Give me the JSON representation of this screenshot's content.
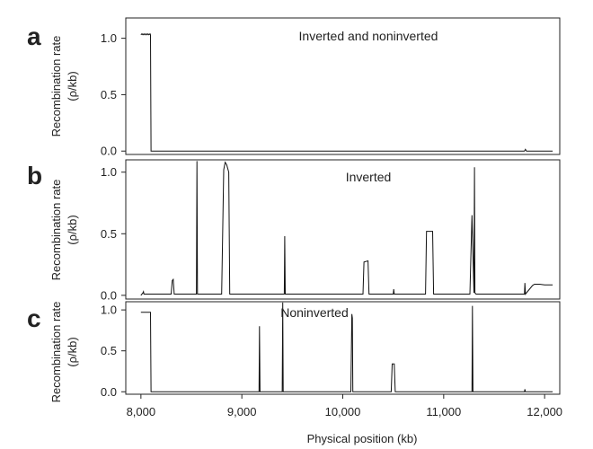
{
  "chart_data": [
    {
      "type": "line",
      "panel": "a",
      "title": "Inverted and noninverted",
      "ylabel_line1": "Recombination rate",
      "ylabel_line2": "(ρ/kb)",
      "xlim": [
        7850,
        12150
      ],
      "ylim": [
        -0.03,
        1.18
      ],
      "yticks": [
        0.0,
        0.5,
        1.0
      ],
      "ytick_labels": [
        "0.0",
        "0.5",
        "1.0"
      ],
      "x": [
        8000,
        8010,
        8020,
        8030,
        8040,
        8050,
        8060,
        8070,
        8080,
        8090,
        8095,
        8100,
        8110,
        9000,
        10000,
        11000,
        11800,
        11810,
        11820,
        12000,
        12080
      ],
      "y": [
        1.03,
        1.04,
        1.03,
        1.04,
        1.03,
        1.04,
        1.03,
        1.04,
        1.03,
        1.04,
        1.03,
        0.0,
        0.0,
        0.0,
        0.0,
        0.0,
        0.0,
        0.015,
        0.0,
        0.0,
        0.0
      ]
    },
    {
      "type": "line",
      "panel": "b",
      "title": "Inverted",
      "ylabel_line1": "Recombination rate",
      "ylabel_line2": "(ρ/kb)",
      "xlim": [
        7850,
        12150
      ],
      "ylim": [
        -0.03,
        1.1
      ],
      "yticks": [
        0.0,
        0.5,
        1.0
      ],
      "ytick_labels": [
        "0.0",
        "0.5",
        "1.0"
      ],
      "x": [
        8000,
        8020,
        8025,
        8030,
        8300,
        8310,
        8320,
        8330,
        8340,
        8550,
        8555,
        8560,
        8800,
        8820,
        8835,
        8850,
        8870,
        8880,
        9420,
        9425,
        9430,
        10200,
        10210,
        10250,
        10260,
        10500,
        10505,
        10510,
        10820,
        10830,
        10890,
        10900,
        11260,
        11270,
        11280,
        11300,
        11305,
        11310,
        11320,
        11800,
        11805,
        11810,
        11880,
        11900,
        11950,
        12000,
        12080
      ],
      "y": [
        0.0,
        0.02,
        0.03,
        0.01,
        0.01,
        0.12,
        0.13,
        0.01,
        0.01,
        0.01,
        1.09,
        0.01,
        0.01,
        1.02,
        1.08,
        1.06,
        1.0,
        0.01,
        0.01,
        0.48,
        0.01,
        0.01,
        0.27,
        0.28,
        0.01,
        0.01,
        0.05,
        0.01,
        0.01,
        0.52,
        0.52,
        0.01,
        0.01,
        0.35,
        0.65,
        0.02,
        1.04,
        0.02,
        0.01,
        0.01,
        0.1,
        0.01,
        0.08,
        0.09,
        0.09,
        0.085,
        0.085
      ]
    },
    {
      "type": "line",
      "panel": "c",
      "title": "Noninverted",
      "ylabel_line1": "Recombination rate",
      "ylabel_line2": "(ρ/kb)",
      "xlabel": "Physical position (kb)",
      "xlim": [
        7850,
        12150
      ],
      "ylim": [
        -0.03,
        1.1
      ],
      "yticks": [
        0.0,
        0.5,
        1.0
      ],
      "ytick_labels": [
        "0.0",
        "0.5",
        "1.0"
      ],
      "xticks": [
        8000,
        9000,
        10000,
        11000,
        12000
      ],
      "xtick_labels": [
        "8,000",
        "9,000",
        "10,000",
        "11,000",
        "12,000"
      ],
      "x": [
        8000,
        8050,
        8095,
        8100,
        9150,
        9170,
        9175,
        9180,
        9400,
        9405,
        9410,
        10080,
        10090,
        10095,
        10100,
        10480,
        10490,
        10510,
        10520,
        11280,
        11285,
        11290,
        11800,
        11805,
        11810,
        12080
      ],
      "y": [
        0.97,
        0.97,
        0.97,
        0.0,
        0.0,
        0.0,
        0.8,
        0.0,
        0.0,
        1.09,
        0.0,
        0.0,
        0.95,
        0.9,
        0.0,
        0.0,
        0.34,
        0.34,
        0.0,
        0.0,
        1.05,
        0.0,
        0.0,
        0.03,
        0.0,
        0.0
      ]
    }
  ]
}
